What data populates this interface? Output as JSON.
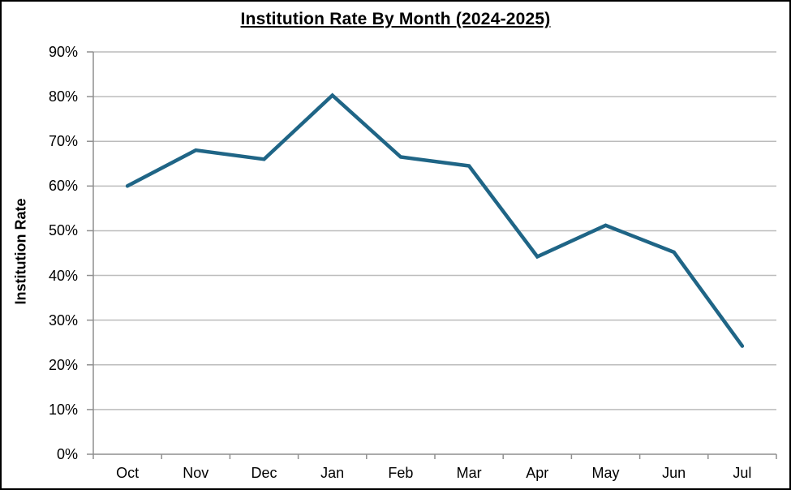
{
  "frame": {
    "background_color": "#FFFFFF",
    "border_color": "#000000"
  },
  "chart_data": {
    "type": "line",
    "title": "Institution Rate By Month (2024-2025)",
    "categories": [
      "Oct",
      "Nov",
      "Dec",
      "Jan",
      "Feb",
      "Mar",
      "Apr",
      "May",
      "Jun",
      "Jul"
    ],
    "series": [
      {
        "name": "Institution Rate",
        "values": [
          60,
          68,
          66,
          80.3,
          66.5,
          64.5,
          44.2,
          51.2,
          45.2,
          24.2
        ]
      }
    ],
    "xlabel": "",
    "ylabel": "Institution Rate",
    "ylim": [
      0,
      90
    ],
    "ytick_step": 10,
    "ytick_labels": [
      "0%",
      "10%",
      "20%",
      "30%",
      "40%",
      "50%",
      "60%",
      "70%",
      "80%",
      "90%"
    ],
    "grid": true,
    "legend": "none",
    "line_color": "#1F6586",
    "line_width": 4.5,
    "gridline_color": "#BCBCBC",
    "axis_color": "#8F8F8F",
    "text_color": "#000000"
  }
}
